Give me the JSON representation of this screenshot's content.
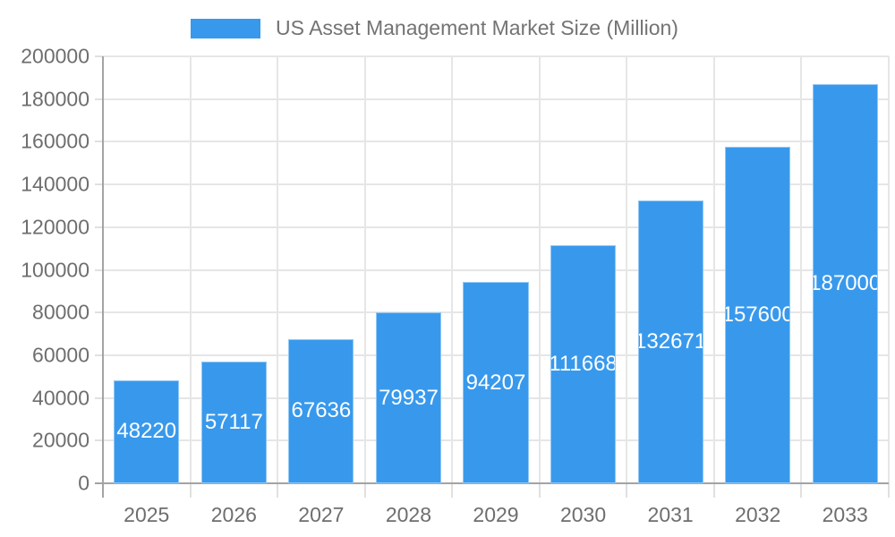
{
  "legend": {
    "label": "US Asset Management Market Size (Million)"
  },
  "colors": {
    "bar": "#3899ec",
    "bar_border": "rgba(255,255,255,0.45)",
    "grid": "#e6e6e6",
    "axis": "#a3a3a3",
    "tick": "#e0e0e0",
    "axis_label": "#6e6e6e",
    "legend_text": "#737373",
    "data_label": "#ffffff",
    "background": "#ffffff"
  },
  "chart_data": {
    "type": "bar",
    "title": "US Asset Management Market Size (Million)",
    "series_name": "US Asset Management Market Size (Million)",
    "categories": [
      "2025",
      "2026",
      "2027",
      "2028",
      "2029",
      "2030",
      "2031",
      "2032",
      "2033"
    ],
    "values": [
      48220,
      57117,
      67636,
      79937,
      94207,
      111668,
      132671,
      157600,
      187000
    ],
    "data_labels": [
      "48220",
      "57117",
      "67636",
      "79937",
      "94207",
      "111668",
      "132671",
      "157600",
      "187000"
    ],
    "xlabel": "",
    "ylabel": "",
    "ylim": [
      0,
      200000
    ],
    "ytick_step": 20000,
    "ytick_labels": [
      "0",
      "20000",
      "40000",
      "60000",
      "80000",
      "100000",
      "120000",
      "140000",
      "160000",
      "180000",
      "200000"
    ],
    "grid": true,
    "legend_position": "top-center",
    "data_label_position": "inside-center",
    "bar_width_ratio": 0.75
  }
}
